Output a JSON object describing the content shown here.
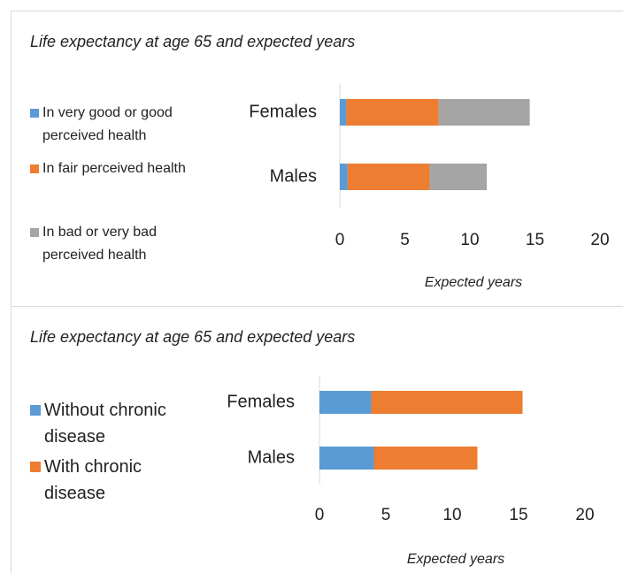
{
  "chart_data": [
    {
      "type": "bar",
      "orientation": "horizontal",
      "stacked": true,
      "title": "Life expectancy at age 65 and expected years",
      "xlabel": "Expected years",
      "categories": [
        "Females",
        "Males"
      ],
      "series": [
        {
          "name": "In very good or good perceived health",
          "color": "#5b9bd5",
          "values": [
            0.5,
            0.6
          ]
        },
        {
          "name": "In fair perceived health",
          "color": "#ed7d31",
          "values": [
            7.1,
            6.3
          ]
        },
        {
          "name": "In bad or very bad perceived health",
          "color": "#a5a5a5",
          "values": [
            7.0,
            4.4
          ]
        }
      ],
      "xlim": [
        0,
        20
      ],
      "xticks": [
        0,
        5,
        10,
        15,
        20
      ]
    },
    {
      "type": "bar",
      "orientation": "horizontal",
      "stacked": true,
      "title": "Life expectancy at age 65 and expected years",
      "xlabel": "Expected years",
      "categories": [
        "Females",
        "Males"
      ],
      "series": [
        {
          "name": "Without chronic disease",
          "color": "#5b9bd5",
          "values": [
            3.9,
            4.1
          ]
        },
        {
          "name": "With chronic disease",
          "color": "#ed7d31",
          "values": [
            11.4,
            7.8
          ]
        }
      ],
      "xlim": [
        0,
        20
      ],
      "xticks": [
        0,
        5,
        10,
        15,
        20
      ]
    }
  ]
}
